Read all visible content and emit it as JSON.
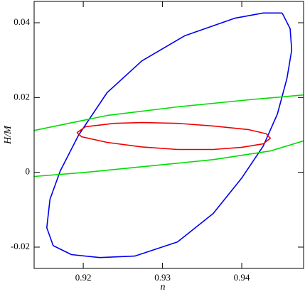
{
  "chart_data": {
    "type": "line",
    "x_label": "n",
    "y_label": "H/M",
    "xlim": [
      0.9138,
      0.9478
    ],
    "xticks": [
      0.92,
      0.93,
      0.94
    ],
    "ylim": [
      -0.0257,
      0.0457
    ],
    "yticks": [
      -0.02,
      0,
      0.02,
      0.04
    ],
    "series": [
      {
        "color": "#0000ee",
        "x": [
          0.9451,
          0.9461,
          0.9463,
          0.9457,
          0.9445,
          0.9427,
          0.94,
          0.9364,
          0.9319,
          0.9265,
          0.9221,
          0.9185,
          0.9162,
          0.9154,
          0.9158,
          0.9171,
          0.9194,
          0.923,
          0.9274,
          0.9328,
          0.9391,
          0.9427,
          0.9451
        ],
        "values": [
          0.0426,
          0.0384,
          0.0327,
          0.0251,
          0.0156,
          0.007,
          -0.0015,
          -0.011,
          -0.0186,
          -0.0224,
          -0.0228,
          -0.022,
          -0.0196,
          -0.0148,
          -0.0072,
          0.0004,
          0.0099,
          0.0213,
          0.0298,
          0.0365,
          0.0412,
          0.0426,
          0.0426
        ]
      },
      {
        "color": "#ee0000",
        "x": [
          0.9192,
          0.9203,
          0.9239,
          0.9274,
          0.9319,
          0.9364,
          0.9409,
          0.9431,
          0.9436,
          0.9427,
          0.94,
          0.9364,
          0.9319,
          0.9274,
          0.923,
          0.9198,
          0.9192
        ],
        "values": [
          0.0106,
          0.0122,
          0.0131,
          0.0133,
          0.0131,
          0.0124,
          0.0114,
          0.0103,
          0.0091,
          0.0076,
          0.0067,
          0.0061,
          0.0061,
          0.0068,
          0.008,
          0.0095,
          0.0106
        ]
      },
      {
        "color": "#00dd00",
        "x": [
          0.9138,
          0.923,
          0.9319,
          0.9409,
          0.9478
        ],
        "values": [
          0.0112,
          0.0152,
          0.0175,
          0.0194,
          0.0207
        ]
      },
      {
        "color": "#00dd00",
        "x": [
          0.9138,
          0.9203,
          0.9274,
          0.9364,
          0.9436,
          0.9478
        ],
        "values": [
          -0.0011,
          0,
          0.0015,
          0.0034,
          0.0057,
          0.0084
        ]
      }
    ]
  }
}
